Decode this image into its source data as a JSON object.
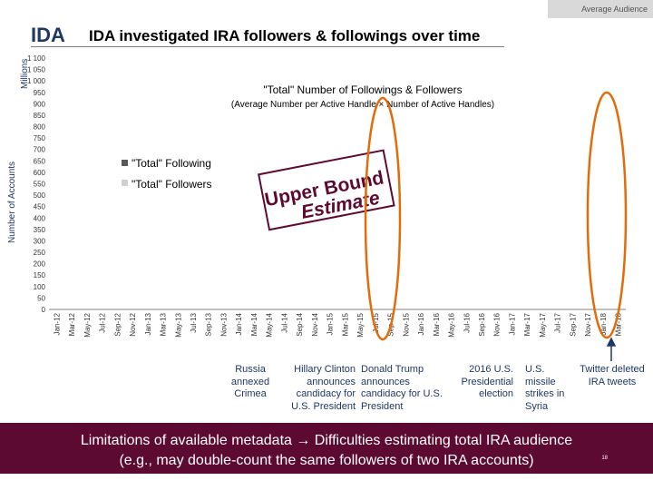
{
  "header": {
    "tag": "Average Audience",
    "logo_text": "IDA",
    "title": "IDA investigated IRA followers & followings over time"
  },
  "axes": {
    "unit_label": "Millions",
    "y_label": "Number of Accounts"
  },
  "stamp": {
    "line1": "Upper Bound",
    "line2": "Estimate"
  },
  "annotations": [
    "Russia annexed Crimea",
    "Hillary Clinton announces candidacy for U.S. President",
    "Donald Trump announces candidacy for U.S. President",
    "2016 U.S. Presidential election",
    "U.S. missile strikes in Syria",
    "Twitter deleted IRA tweets"
  ],
  "footer": {
    "line1": "Limitations of available metadata → Difficulties estimating total IRA audience",
    "line2": "(e.g., may double-count the same followers of two IRA accounts)",
    "page": "18"
  },
  "colors": {
    "following": "#595959",
    "followers": "#d0d0d0",
    "annotation": "#1f3864",
    "highlight": "#e36c0a",
    "footer_bg": "#5c0a31",
    "stamp": "#5c0a31"
  },
  "chart_data": {
    "type": "bar",
    "title": "\"Total\" Number of Followings & Followers",
    "subtitle": "(Average Number per Active Handle × Number of Active Handles)",
    "ylabel": "Number of Accounts",
    "yunit": "Millions",
    "ylim": [
      0,
      1100
    ],
    "yticks": [
      0,
      50,
      100,
      150,
      200,
      250,
      300,
      350,
      400,
      450,
      500,
      550,
      600,
      650,
      700,
      750,
      800,
      850,
      900,
      950,
      1000,
      1050,
      1100
    ],
    "ytick_labels": [
      "0",
      "50",
      "100",
      "150",
      "200",
      "250",
      "300",
      "350",
      "400",
      "450",
      "500",
      "550",
      "600",
      "650",
      "700",
      "750",
      "800",
      "850",
      "900",
      "950",
      "1 000",
      "1 050",
      "1 100"
    ],
    "xtick_labels": [
      "Jan-12",
      "Mar-12",
      "May-12",
      "Jul-12",
      "Sep-12",
      "Nov-12",
      "Jan-13",
      "Mar-13",
      "May-13",
      "Jul-13",
      "Sep-13",
      "Nov-13",
      "Jan-14",
      "Mar-14",
      "May-14",
      "Jul-14",
      "Sep-14",
      "Nov-14",
      "Jan-15",
      "Mar-15",
      "May-15",
      "Jul-15",
      "Sep-15",
      "Nov-15",
      "Jan-16",
      "Mar-16",
      "May-16",
      "Jul-16",
      "Sep-16",
      "Nov-16",
      "Jan-17",
      "Mar-17",
      "May-17",
      "Jul-17",
      "Sep-17",
      "Nov-17",
      "Jan-18",
      "Mar-18"
    ],
    "legend": [
      "\"Total\" Following",
      "\"Total\" Followers"
    ],
    "legend_position": "upper-left",
    "grid": false,
    "series": [
      {
        "name": "\"Total\" Following",
        "values": [
          0,
          0,
          0,
          0,
          0,
          0,
          0,
          0,
          0,
          0,
          0,
          0,
          0,
          0,
          0,
          0,
          0,
          0,
          0,
          0,
          0,
          0,
          0,
          0,
          0,
          0,
          0,
          0,
          0,
          0,
          0,
          0,
          0,
          0,
          0,
          0,
          0,
          0,
          0,
          0,
          0,
          0,
          0,
          0,
          0,
          0,
          0,
          0,
          0,
          0,
          0,
          0,
          0,
          0,
          0,
          0,
          0,
          0,
          0,
          0,
          0,
          0,
          0,
          0,
          0,
          0,
          0,
          0,
          0,
          0,
          0,
          0,
          0,
          0,
          0,
          0
        ]
      },
      {
        "name": "\"Total\" Followers",
        "values": [
          0,
          0,
          0,
          0,
          0,
          0,
          0,
          0,
          0,
          0,
          0,
          0,
          0,
          0,
          0,
          0,
          0,
          0,
          0,
          0,
          0,
          0,
          0,
          0,
          0,
          0,
          0,
          0,
          0,
          0,
          0,
          0,
          0,
          0,
          0,
          0,
          0,
          0,
          0,
          0,
          0,
          0,
          0,
          0,
          0,
          0,
          0,
          0,
          0,
          0,
          0,
          0,
          0,
          0,
          0,
          0,
          0,
          0,
          0,
          0,
          0,
          0,
          0,
          0,
          0,
          0,
          0,
          0,
          0,
          0,
          0,
          0,
          0,
          0,
          0,
          0
        ]
      }
    ]
  }
}
